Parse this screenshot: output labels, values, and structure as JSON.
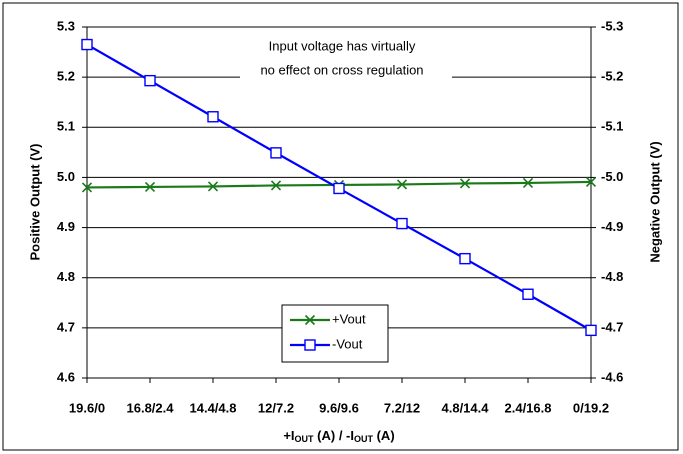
{
  "chart_data": {
    "type": "line",
    "categories": [
      "19.6/0",
      "16.8/2.4",
      "14.4/4.8",
      "12/7.2",
      "9.6/9.6",
      "7.2/12",
      "4.8/14.4",
      "2.4/16.8",
      "0/19.2"
    ],
    "series": [
      {
        "name": "+Vout",
        "color": "#1a7a1a",
        "marker": "x",
        "values": [
          4.98,
          4.981,
          4.982,
          4.984,
          4.985,
          4.986,
          4.988,
          4.989,
          4.991
        ]
      },
      {
        "name": "-Vout",
        "color": "#0000ff",
        "marker": "square",
        "axis": "y2",
        "values": [
          -5.265,
          -5.193,
          -5.121,
          -5.049,
          -4.978,
          -4.908,
          -4.838,
          -4.767,
          -4.695
        ]
      }
    ],
    "ylim": [
      4.6,
      5.3
    ],
    "yticks": [
      4.6,
      4.7,
      4.8,
      4.9,
      {
        "value": 5,
        "label": "5.0"
      },
      5.1,
      5.2,
      5.3
    ],
    "y2lim": [
      -4.6,
      -5.3
    ],
    "y2ticks": [
      -4.6,
      -4.7,
      -4.8,
      -4.9,
      {
        "value": -5,
        "label": "-5.0"
      },
      -5.1,
      -5.2,
      -5.3
    ],
    "ylabel": "Positive Output (V)",
    "y2label": "Negative Output (V)",
    "xlabel": [
      "+I",
      "OUT",
      " (A) / -I",
      "OUT",
      " (A)"
    ],
    "annotation": [
      "Input voltage has virtually",
      "no effect on cross regulation"
    ],
    "grid": true,
    "legend_position": "lower center"
  }
}
